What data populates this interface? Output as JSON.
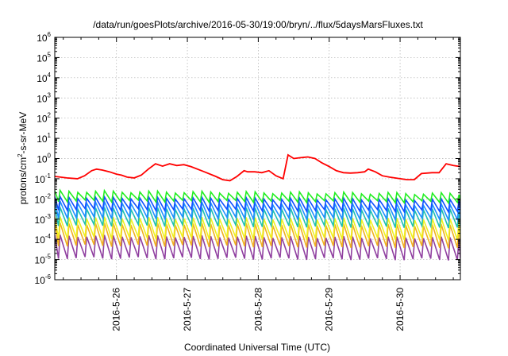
{
  "chart_data": {
    "type": "line",
    "title": "/data/run/goesPlots/archive/2016-05-30/19:00/bryn/../flux/5daysMarsFluxes.txt",
    "xlabel": "Coordinated Universal Time (UTC)",
    "ylabel_prefix": "protons/cm",
    "ylabel_sup": "2",
    "ylabel_suffix": "-s-sr-MeV",
    "yscale": "log",
    "ylim_exp": [
      -6,
      6
    ],
    "ytick_exponents": [
      -6,
      -5,
      -4,
      -3,
      -2,
      -1,
      0,
      1,
      2,
      3,
      4,
      5,
      6
    ],
    "ytick_base": "10",
    "xlim_days": [
      25.13,
      30.85
    ],
    "xticks": [
      {
        "day": 26,
        "label": "2016-5-26"
      },
      {
        "day": 27,
        "label": "2016-5-27"
      },
      {
        "day": 28,
        "label": "2016-5-28"
      },
      {
        "day": 29,
        "label": "2016-5-29"
      },
      {
        "day": 30,
        "label": "2016-5-30"
      }
    ],
    "grid": true,
    "sawtooth_period_days": 0.125,
    "series": [
      {
        "color": "#ff0000",
        "kind": "envelope",
        "points": [
          [
            25.13,
            0.13
          ],
          [
            25.3,
            0.11
          ],
          [
            25.45,
            0.1
          ],
          [
            25.55,
            0.14
          ],
          [
            25.65,
            0.25
          ],
          [
            25.72,
            0.3
          ],
          [
            25.8,
            0.27
          ],
          [
            25.9,
            0.22
          ],
          [
            26.0,
            0.17
          ],
          [
            26.07,
            0.15
          ],
          [
            26.15,
            0.12
          ],
          [
            26.25,
            0.11
          ],
          [
            26.35,
            0.15
          ],
          [
            26.45,
            0.3
          ],
          [
            26.55,
            0.55
          ],
          [
            26.65,
            0.42
          ],
          [
            26.75,
            0.55
          ],
          [
            26.85,
            0.45
          ],
          [
            26.95,
            0.5
          ],
          [
            27.05,
            0.4
          ],
          [
            27.2,
            0.25
          ],
          [
            27.4,
            0.13
          ],
          [
            27.5,
            0.09
          ],
          [
            27.6,
            0.08
          ],
          [
            27.7,
            0.13
          ],
          [
            27.8,
            0.25
          ],
          [
            27.85,
            0.22
          ],
          [
            27.95,
            0.22
          ],
          [
            28.05,
            0.2
          ],
          [
            28.15,
            0.25
          ],
          [
            28.25,
            0.14
          ],
          [
            28.35,
            0.1
          ],
          [
            28.42,
            1.5
          ],
          [
            28.5,
            1.0
          ],
          [
            28.6,
            1.1
          ],
          [
            28.7,
            1.2
          ],
          [
            28.8,
            1.0
          ],
          [
            28.9,
            0.6
          ],
          [
            29.0,
            0.4
          ],
          [
            29.1,
            0.25
          ],
          [
            29.2,
            0.2
          ],
          [
            29.3,
            0.19
          ],
          [
            29.4,
            0.2
          ],
          [
            29.5,
            0.22
          ],
          [
            29.55,
            0.3
          ],
          [
            29.65,
            0.22
          ],
          [
            29.75,
            0.14
          ],
          [
            29.85,
            0.12
          ],
          [
            30.0,
            0.1
          ],
          [
            30.1,
            0.09
          ],
          [
            30.2,
            0.09
          ],
          [
            30.3,
            0.18
          ],
          [
            30.45,
            0.2
          ],
          [
            30.55,
            0.2
          ],
          [
            30.65,
            0.55
          ],
          [
            30.75,
            0.45
          ],
          [
            30.85,
            0.4
          ]
        ]
      },
      {
        "color": "#22ee22",
        "kind": "sawtooth",
        "peak": 0.024,
        "trough": 0.008,
        "peak_end": 0.018,
        "trough_end": 0.007
      },
      {
        "color": "#1050ff",
        "kind": "sawtooth",
        "peak": 0.012,
        "trough": 0.003,
        "peak_end": 0.009,
        "trough_end": 0.0025
      },
      {
        "color": "#2090ff",
        "kind": "sawtooth",
        "peak": 0.007,
        "trough": 0.0012,
        "peak_end": 0.005,
        "trough_end": 0.001
      },
      {
        "color": "#20c0b0",
        "kind": "sawtooth",
        "peak": 0.0035,
        "trough": 0.0005,
        "peak_end": 0.003,
        "trough_end": 0.0004
      },
      {
        "color": "#f0f020",
        "kind": "sawtooth",
        "peak": 0.0012,
        "trough": 0.00012,
        "peak_end": 0.001,
        "trough_end": 0.0001
      },
      {
        "color": "#f0b020",
        "kind": "sawtooth",
        "peak": 0.0006,
        "trough": 5e-05,
        "peak_end": 0.0005,
        "trough_end": 4e-05
      },
      {
        "color": "#9040a0",
        "kind": "sawtooth",
        "peak": 0.00015,
        "trough": 1.2e-05,
        "peak_end": 0.00012,
        "trough_end": 1e-05
      }
    ]
  }
}
